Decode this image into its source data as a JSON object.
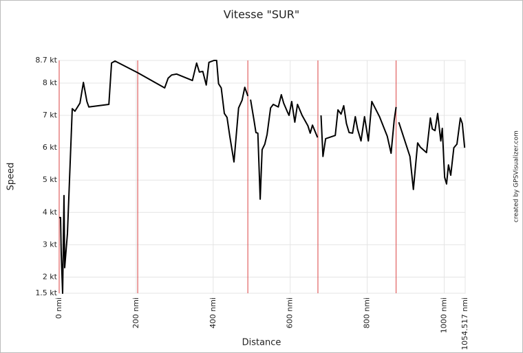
{
  "chart_data": {
    "type": "line",
    "title": "Vitesse \"SUR\"",
    "x_label": "Distance",
    "y_label": "Speed",
    "credit": "created by GPSVisualizer.com",
    "xlim": [
      0,
      1054.517
    ],
    "ylim": [
      1.5,
      8.7
    ],
    "xticks": [
      {
        "value": 0,
        "label": "0 nmi"
      },
      {
        "value": 200,
        "label": "200 nmi"
      },
      {
        "value": 400,
        "label": "400 nmi"
      },
      {
        "value": 600,
        "label": "600 nmi"
      },
      {
        "value": 800,
        "label": "800 nmi"
      },
      {
        "value": 1000,
        "label": "1000 nmi"
      },
      {
        "value": 1054.517,
        "label": "1054.517 nmi"
      }
    ],
    "yticks": [
      {
        "value": 1.5,
        "label": "1.5 kt"
      },
      {
        "value": 2,
        "label": "2 kt"
      },
      {
        "value": 3,
        "label": "3 kt"
      },
      {
        "value": 4,
        "label": "4 kt"
      },
      {
        "value": 5,
        "label": "5 kt"
      },
      {
        "value": 6,
        "label": "6 kt"
      },
      {
        "value": 7,
        "label": "7 kt"
      },
      {
        "value": 8,
        "label": "8 kt"
      },
      {
        "value": 8.7,
        "label": "8.7 kt"
      }
    ],
    "grid": true,
    "vlines": [
      0,
      204,
      490,
      672,
      875
    ],
    "vline_color": "#e06060",
    "x": [
      0,
      3.6,
      5.4,
      9,
      12.6,
      14.3,
      21.5,
      34,
      41,
      54,
      63,
      72,
      77,
      129,
      136,
      145,
      204,
      274,
      283,
      292,
      305,
      346,
      357,
      364,
      373,
      382,
      389,
      402,
      409,
      414,
      421,
      429,
      436,
      443,
      454,
      466,
      475,
      482,
      490,
      null,
      497,
      506,
      511,
      516,
      522,
      527,
      534,
      540,
      549,
      556,
      569,
      577,
      583,
      592,
      597,
      604,
      612,
      619,
      631,
      646,
      652,
      658,
      671,
      null,
      680,
      685,
      692,
      717,
      724,
      732,
      739,
      746,
      753,
      762,
      769,
      775,
      784,
      793,
      803,
      812,
      832,
      852,
      862,
      870,
      875,
      null,
      882,
      911,
      920,
      931,
      938,
      954,
      964,
      969,
      976,
      983,
      991,
      995,
      1001,
      1006,
      1011,
      1017,
      1025,
      1033,
      1042,
      1047,
      1053
    ],
    "series": [
      {
        "name": "Speed",
        "color": "#000000",
        "values": [
          3.84,
          3.84,
          2.71,
          1.5,
          4.52,
          2.29,
          3.35,
          7.21,
          7.13,
          7.38,
          8.02,
          7.43,
          7.26,
          7.34,
          8.62,
          8.68,
          8.32,
          7.85,
          8.15,
          8.25,
          8.28,
          8.08,
          8.62,
          8.34,
          8.36,
          7.94,
          8.64,
          8.7,
          8.7,
          7.98,
          7.85,
          7.06,
          6.94,
          6.36,
          5.56,
          7.23,
          7.47,
          7.87,
          7.6,
          null,
          7.49,
          6.85,
          6.47,
          6.45,
          4.41,
          5.94,
          6.11,
          6.41,
          7.23,
          7.34,
          7.26,
          7.64,
          7.38,
          7.13,
          7.0,
          7.43,
          6.79,
          7.34,
          7.0,
          6.68,
          6.45,
          6.7,
          6.32,
          null,
          7.0,
          5.73,
          6.28,
          6.38,
          7.17,
          7.04,
          7.3,
          6.75,
          6.47,
          6.45,
          6.96,
          6.58,
          6.21,
          6.96,
          6.21,
          7.43,
          6.96,
          6.36,
          5.83,
          6.85,
          7.26,
          null,
          6.79,
          5.73,
          4.71,
          6.15,
          6.02,
          5.85,
          6.92,
          6.58,
          6.53,
          7.06,
          6.21,
          6.6,
          5.09,
          4.88,
          5.47,
          5.15,
          6.0,
          6.11,
          6.92,
          6.75,
          6.0
        ]
      }
    ]
  }
}
